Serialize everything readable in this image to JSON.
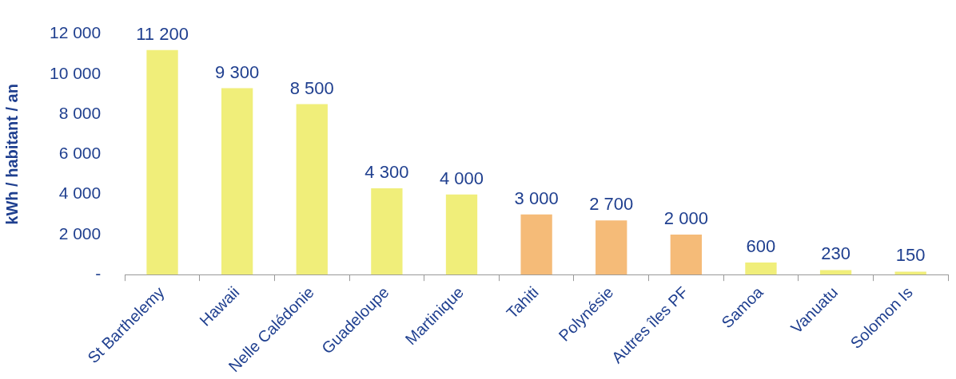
{
  "chart_data": {
    "type": "bar",
    "ylabel": "kWh / habitant / an",
    "categories": [
      "St Barthelemy",
      "Hawaii",
      "Nelle Calédonie",
      "Guadeloupe",
      "Martinique",
      "Tahiti",
      "Polynésie",
      "Autres îles PF",
      "Samoa",
      "Vanuatu",
      "Solomon Is"
    ],
    "values": [
      11200,
      9300,
      8500,
      4300,
      4000,
      3000,
      2700,
      2000,
      600,
      230,
      150
    ],
    "colors": [
      "#f0ee7a",
      "#f0ee7a",
      "#f0ee7a",
      "#f0ee7a",
      "#f0ee7a",
      "#f5bb78",
      "#f5bb78",
      "#f5bb78",
      "#f0ee7a",
      "#f0ee7a",
      "#f0ee7a"
    ],
    "value_labels": [
      "11 200",
      "9 300",
      "8 500",
      "4 300",
      "4 000",
      "3 000",
      "2 700",
      "2 000",
      "600",
      "230",
      "150"
    ],
    "ylim": [
      0,
      12000
    ],
    "yticks": [
      {
        "value": 0,
        "label": "-"
      },
      {
        "value": 2000,
        "label": "2 000"
      },
      {
        "value": 4000,
        "label": "4 000"
      },
      {
        "value": 6000,
        "label": "6 000"
      },
      {
        "value": 8000,
        "label": "8 000"
      },
      {
        "value": 10000,
        "label": "10 000"
      },
      {
        "value": 12000,
        "label": "12 000"
      }
    ],
    "grid": false,
    "legend": false
  }
}
